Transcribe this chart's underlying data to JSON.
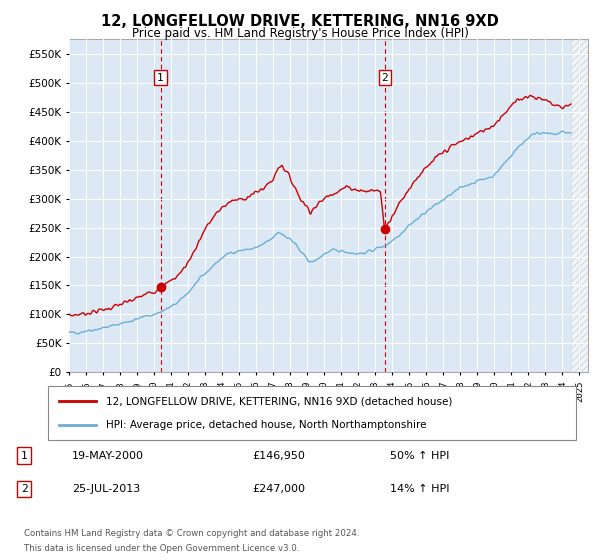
{
  "title": "12, LONGFELLOW DRIVE, KETTERING, NN16 9XD",
  "subtitle": "Price paid vs. HM Land Registry's House Price Index (HPI)",
  "legend_line1": "12, LONGFELLOW DRIVE, KETTERING, NN16 9XD (detached house)",
  "legend_line2": "HPI: Average price, detached house, North Northamptonshire",
  "sale1_label": "1",
  "sale1_date": "19-MAY-2000",
  "sale1_price": "£146,950",
  "sale1_hpi": "50% ↑ HPI",
  "sale1_year": 2000.38,
  "sale1_value": 146950,
  "sale2_label": "2",
  "sale2_date": "25-JUL-2013",
  "sale2_price": "£247,000",
  "sale2_hpi": "14% ↑ HPI",
  "sale2_year": 2013.55,
  "sale2_value": 247000,
  "hpi_line_color": "#6baed6",
  "price_line_color": "#cc0000",
  "sale_dot_color": "#cc0000",
  "plot_bg_color": "#dce9f5",
  "ylim": [
    0,
    575000
  ],
  "xlim_start": 1995.0,
  "xlim_end": 2025.5,
  "hatch_start": 2024.5,
  "footer_line1": "Contains HM Land Registry data © Crown copyright and database right 2024.",
  "footer_line2": "This data is licensed under the Open Government Licence v3.0."
}
